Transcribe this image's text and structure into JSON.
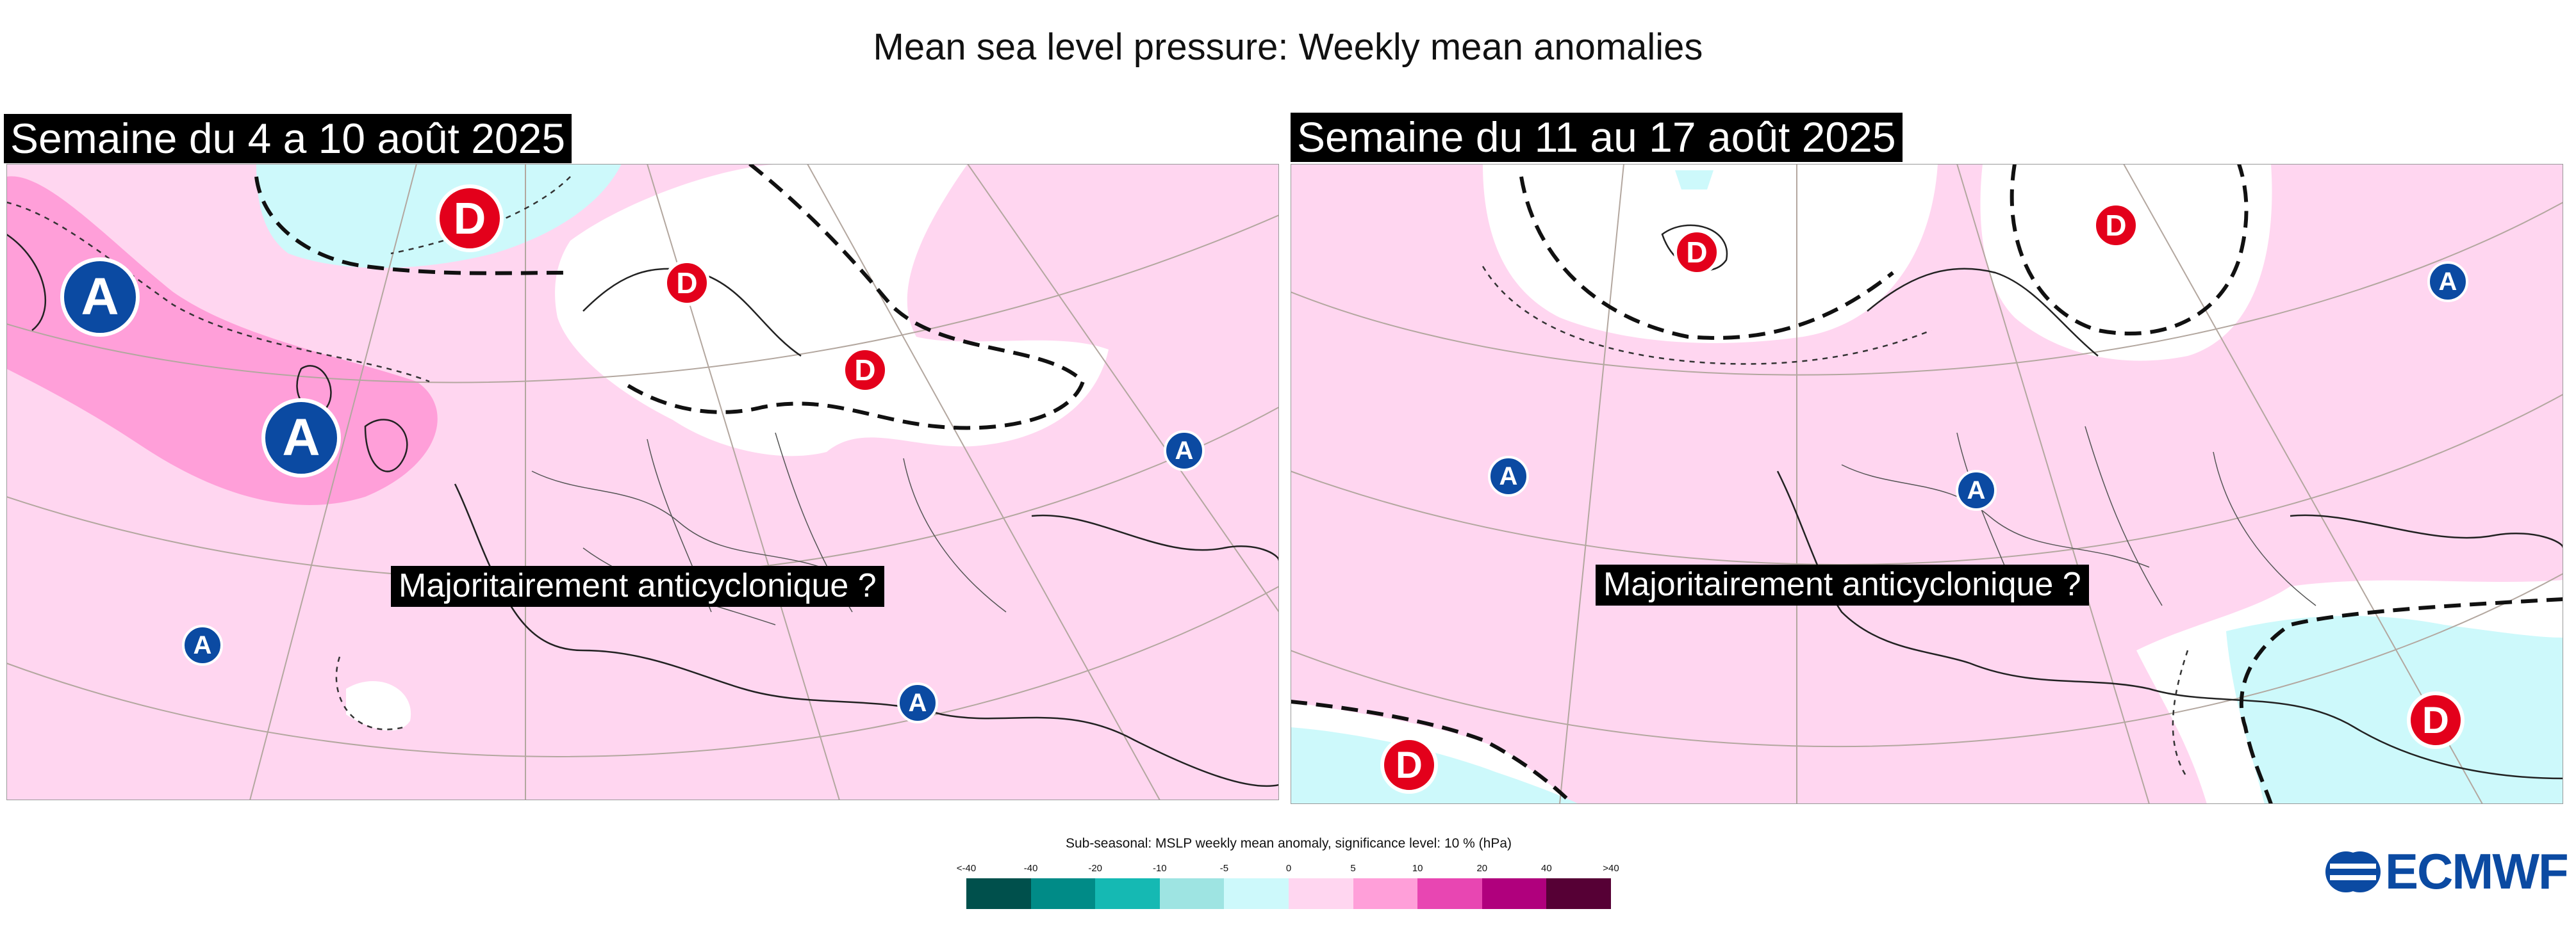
{
  "title": "Mean sea level pressure: Weekly mean anomalies",
  "panels": [
    {
      "label": "Semaine du 4 a 10 août 2025",
      "annotation": "Majoritairement anticyclonique ?",
      "markers": [
        "A",
        "A",
        "A",
        "A",
        "A",
        "D",
        "D",
        "D"
      ]
    },
    {
      "label": "Semaine du 11 au 17 août 2025",
      "annotation": "Majoritairement anticyclonique ?",
      "markers": [
        "A",
        "A",
        "A",
        "D",
        "D",
        "D",
        "D"
      ]
    }
  ],
  "legend": {
    "title": "Sub-seasonal: MSLP weekly mean anomaly, significance level: 10 % (hPa)",
    "ticks": [
      "<-40",
      "-40",
      "-20",
      "-10",
      "-5",
      "0",
      "5",
      "10",
      "20",
      "40",
      ">40"
    ],
    "colors": [
      "#00504c",
      "#008b87",
      "#15b9b3",
      "#9ee4e2",
      "#cdf9fb",
      "#ffd6f0",
      "#ff9fd9",
      "#e846b2",
      "#b0007d",
      "#560035"
    ]
  },
  "logo": "ECMWF",
  "colors": {
    "neutral_positive": "#ffd6f0",
    "strong_positive": "#ff9fd9",
    "negative": "#cdf9fb",
    "high_marker": "#0b4aa2",
    "low_marker": "#e3001b"
  }
}
